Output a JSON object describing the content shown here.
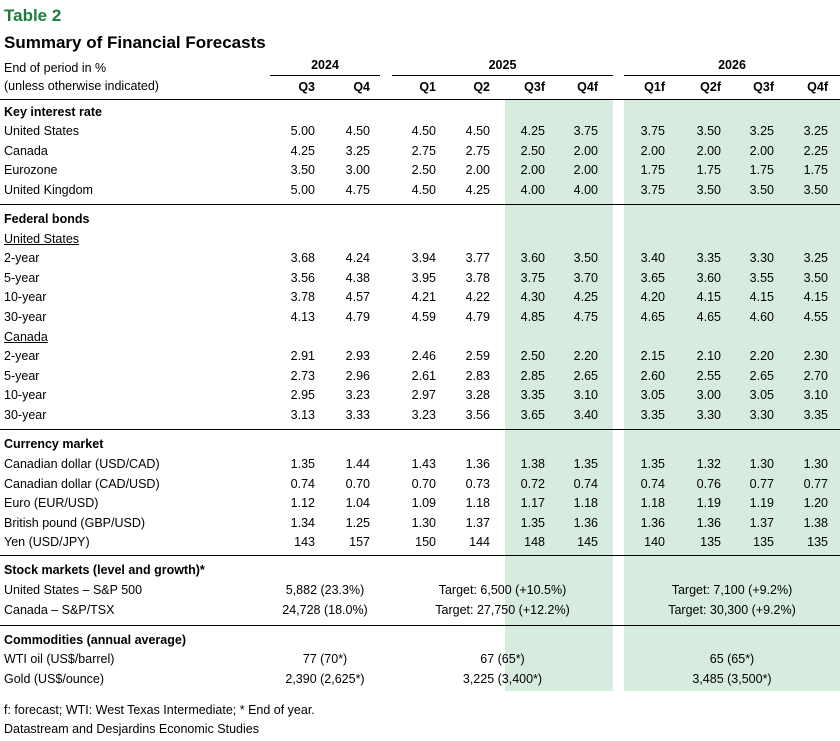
{
  "table_label": "Table 2",
  "title": "Summary of Financial Forecasts",
  "unit_line1": "End of period in %",
  "unit_line2": "(unless otherwise indicated)",
  "years": [
    "2024",
    "2025",
    "2026"
  ],
  "columns": [
    "Q3",
    "Q4",
    "Q1",
    "Q2",
    "Q3f",
    "Q4f",
    "Q1f",
    "Q2f",
    "Q3f",
    "Q4f"
  ],
  "sections": {
    "interest": {
      "title": "Key interest rate",
      "rows": [
        {
          "label": "United States",
          "values": [
            "5.00",
            "4.50",
            "4.50",
            "4.50",
            "4.25",
            "3.75",
            "3.75",
            "3.50",
            "3.25",
            "3.25"
          ]
        },
        {
          "label": "Canada",
          "values": [
            "4.25",
            "3.25",
            "2.75",
            "2.75",
            "2.50",
            "2.00",
            "2.00",
            "2.00",
            "2.00",
            "2.25"
          ]
        },
        {
          "label": "Eurozone",
          "values": [
            "3.50",
            "3.00",
            "2.50",
            "2.00",
            "2.00",
            "2.00",
            "1.75",
            "1.75",
            "1.75",
            "1.75"
          ]
        },
        {
          "label": "United Kingdom",
          "values": [
            "5.00",
            "4.75",
            "4.50",
            "4.25",
            "4.00",
            "4.00",
            "3.75",
            "3.50",
            "3.50",
            "3.50"
          ]
        }
      ]
    },
    "bonds": {
      "title": "Federal bonds",
      "us_label": "United States",
      "us_rows": [
        {
          "label": "2-year",
          "values": [
            "3.68",
            "4.24",
            "3.94",
            "3.77",
            "3.60",
            "3.50",
            "3.40",
            "3.35",
            "3.30",
            "3.25"
          ]
        },
        {
          "label": "5-year",
          "values": [
            "3.56",
            "4.38",
            "3.95",
            "3.78",
            "3.75",
            "3.70",
            "3.65",
            "3.60",
            "3.55",
            "3.50"
          ]
        },
        {
          "label": "10-year",
          "values": [
            "3.78",
            "4.57",
            "4.21",
            "4.22",
            "4.30",
            "4.25",
            "4.20",
            "4.15",
            "4.15",
            "4.15"
          ]
        },
        {
          "label": "30-year",
          "values": [
            "4.13",
            "4.79",
            "4.59",
            "4.79",
            "4.85",
            "4.75",
            "4.65",
            "4.65",
            "4.60",
            "4.55"
          ]
        }
      ],
      "ca_label": "Canada",
      "ca_rows": [
        {
          "label": "2-year",
          "values": [
            "2.91",
            "2.93",
            "2.46",
            "2.59",
            "2.50",
            "2.20",
            "2.15",
            "2.10",
            "2.20",
            "2.30"
          ]
        },
        {
          "label": "5-year",
          "values": [
            "2.73",
            "2.96",
            "2.61",
            "2.83",
            "2.85",
            "2.65",
            "2.60",
            "2.55",
            "2.65",
            "2.70"
          ]
        },
        {
          "label": "10-year",
          "values": [
            "2.95",
            "3.23",
            "2.97",
            "3.28",
            "3.35",
            "3.10",
            "3.05",
            "3.00",
            "3.05",
            "3.10"
          ]
        },
        {
          "label": "30-year",
          "values": [
            "3.13",
            "3.33",
            "3.23",
            "3.56",
            "3.65",
            "3.40",
            "3.35",
            "3.30",
            "3.30",
            "3.35"
          ]
        }
      ]
    },
    "currency": {
      "title": "Currency market",
      "rows": [
        {
          "label": "Canadian dollar (USD/CAD)",
          "values": [
            "1.35",
            "1.44",
            "1.43",
            "1.36",
            "1.38",
            "1.35",
            "1.35",
            "1.32",
            "1.30",
            "1.30"
          ]
        },
        {
          "label": "Canadian dollar (CAD/USD)",
          "values": [
            "0.74",
            "0.70",
            "0.70",
            "0.73",
            "0.72",
            "0.74",
            "0.74",
            "0.76",
            "0.77",
            "0.77"
          ]
        },
        {
          "label": "Euro (EUR/USD)",
          "values": [
            "1.12",
            "1.04",
            "1.09",
            "1.18",
            "1.17",
            "1.18",
            "1.18",
            "1.19",
            "1.19",
            "1.20"
          ]
        },
        {
          "label": "British pound (GBP/USD)",
          "values": [
            "1.34",
            "1.25",
            "1.30",
            "1.37",
            "1.35",
            "1.36",
            "1.36",
            "1.36",
            "1.37",
            "1.38"
          ]
        },
        {
          "label": "Yen (USD/JPY)",
          "values": [
            "143",
            "157",
            "150",
            "144",
            "148",
            "145",
            "140",
            "135",
            "135",
            "135"
          ]
        }
      ]
    },
    "stocks": {
      "title": "Stock markets (level and growth)*",
      "rows": [
        {
          "label": "United States – S&P 500",
          "v2024": "5,882 (23.3%)",
          "v2025": "Target: 6,500 (+10.5%)",
          "v2026": "Target: 7,100 (+9.2%)"
        },
        {
          "label": "Canada – S&P/TSX",
          "v2024": "24,728 (18.0%)",
          "v2025": "Target: 27,750 (+12.2%)",
          "v2026": "Target: 30,300 (+9.2%)"
        }
      ]
    },
    "commodities": {
      "title": "Commodities (annual average)",
      "rows": [
        {
          "label": "WTI oil (US$/barrel)",
          "v2024": "77 (70*)",
          "v2025": "67 (65*)",
          "v2026": "65 (65*)"
        },
        {
          "label": "Gold (US$/ounce)",
          "v2024": "2,390 (2,625*)",
          "v2025": "3,225 (3,400*)",
          "v2026": "3,485 (3,500*)"
        }
      ]
    }
  },
  "footnote": "f: forecast; WTI: West Texas Intermediate; * End of year.",
  "source": "Datastream and Desjardins Economic Studies",
  "colors": {
    "accent": "#1a7f3c",
    "forecast_shade": "#d7ebdf"
  }
}
